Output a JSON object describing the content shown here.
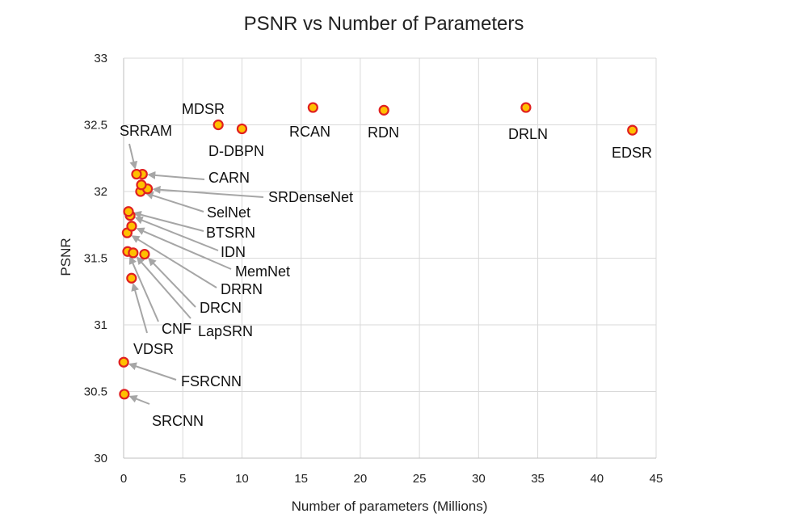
{
  "chart_data": {
    "type": "scatter",
    "title": "PSNR vs Number of Parameters",
    "xlabel": "Number of parameters (Millions)",
    "ylabel": "PSNR",
    "xlim": [
      0,
      45
    ],
    "ylim": [
      30,
      33
    ],
    "xticks": [
      "0",
      "5",
      "10",
      "15",
      "20",
      "25",
      "30",
      "35",
      "40",
      "45"
    ],
    "yticks": [
      "30",
      "30.5",
      "31",
      "31.5",
      "32",
      "32.5",
      "33"
    ],
    "grid": true,
    "marker": {
      "fill": "#ffc000",
      "stroke": "#e02020"
    },
    "leader_color": "#a6a6a6",
    "points": [
      {
        "label": "SRCNN",
        "x": 0.06,
        "y": 30.48
      },
      {
        "label": "FSRCNN",
        "x": 0.01,
        "y": 30.72
      },
      {
        "label": "VDSR",
        "x": 0.67,
        "y": 31.35
      },
      {
        "label": "CNF",
        "x": 0.34,
        "y": 31.55
      },
      {
        "label": "LapSRN",
        "x": 0.81,
        "y": 31.54
      },
      {
        "label": "DRCN",
        "x": 1.77,
        "y": 31.53
      },
      {
        "label": "DRRN",
        "x": 0.3,
        "y": 31.69
      },
      {
        "label": "MemNet",
        "x": 0.68,
        "y": 31.74
      },
      {
        "label": "IDN",
        "x": 0.55,
        "y": 31.82
      },
      {
        "label": "BTSRN",
        "x": 0.41,
        "y": 31.85
      },
      {
        "label": "SelNet",
        "x": 1.43,
        "y": 32.0
      },
      {
        "label": "SRDenseNet",
        "x": 2.02,
        "y": 32.02
      },
      {
        "label": "CARN",
        "x": 1.59,
        "y": 32.13
      },
      {
        "label": "SRRAM",
        "x": 1.09,
        "y": 32.13
      },
      {
        "label": "",
        "x": 1.5,
        "y": 32.05
      },
      {
        "label": "MDSR",
        "x": 8.0,
        "y": 32.5
      },
      {
        "label": "D-DBPN",
        "x": 10.0,
        "y": 32.47
      },
      {
        "label": "RCAN",
        "x": 16.0,
        "y": 32.63
      },
      {
        "label": "RDN",
        "x": 22.0,
        "y": 32.61
      },
      {
        "label": "DRLN",
        "x": 34.0,
        "y": 32.63
      },
      {
        "label": "EDSR",
        "x": 43.0,
        "y": 32.46
      }
    ]
  }
}
